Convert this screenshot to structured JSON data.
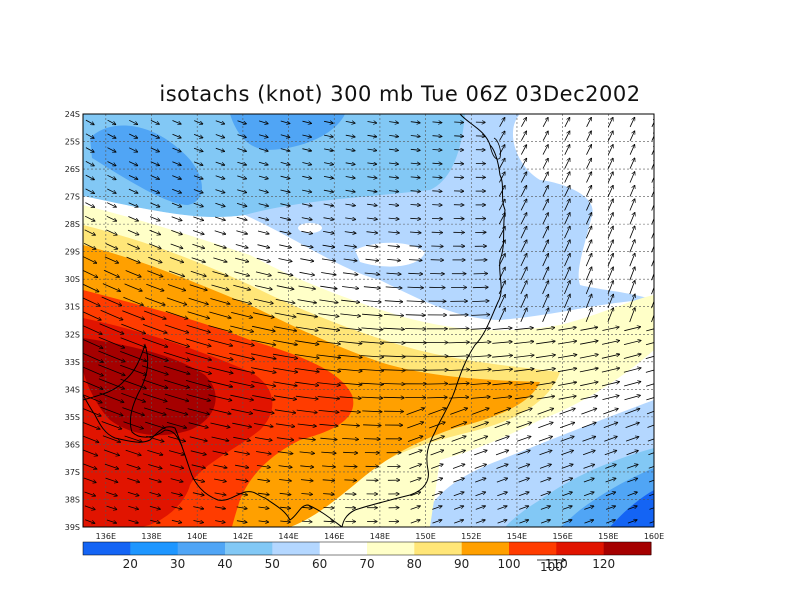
{
  "title": "isotachs (knot) 300 mb Tue 06Z 03Dec2002",
  "map": {
    "lat_labels": [
      "24S",
      "25S",
      "26S",
      "27S",
      "28S",
      "29S",
      "30S",
      "31S",
      "32S",
      "33S",
      "34S",
      "35S",
      "36S",
      "37S",
      "38S",
      "39S"
    ],
    "lon_labels": [
      "136E",
      "138E",
      "140E",
      "142E",
      "144E",
      "146E",
      "148E",
      "150E",
      "152E",
      "154E",
      "156E",
      "158E",
      "160E"
    ],
    "lon_range": [
      135,
      160
    ],
    "lat_range": [
      -24,
      -39
    ],
    "grid": "dotted"
  },
  "colorbar": {
    "labels": [
      "20",
      "30",
      "40",
      "50",
      "60",
      "70",
      "80",
      "90",
      "100",
      "110",
      "120"
    ],
    "colors": [
      "#1464f4",
      "#1e96ff",
      "#50a5f5",
      "#82c8f5",
      "#b4d7ff",
      "#ffffff",
      "#ffffc8",
      "#ffe678",
      "#ffa000",
      "#ff3c00",
      "#e11400",
      "#a50000"
    ]
  },
  "vector_key": {
    "label": "100"
  }
}
